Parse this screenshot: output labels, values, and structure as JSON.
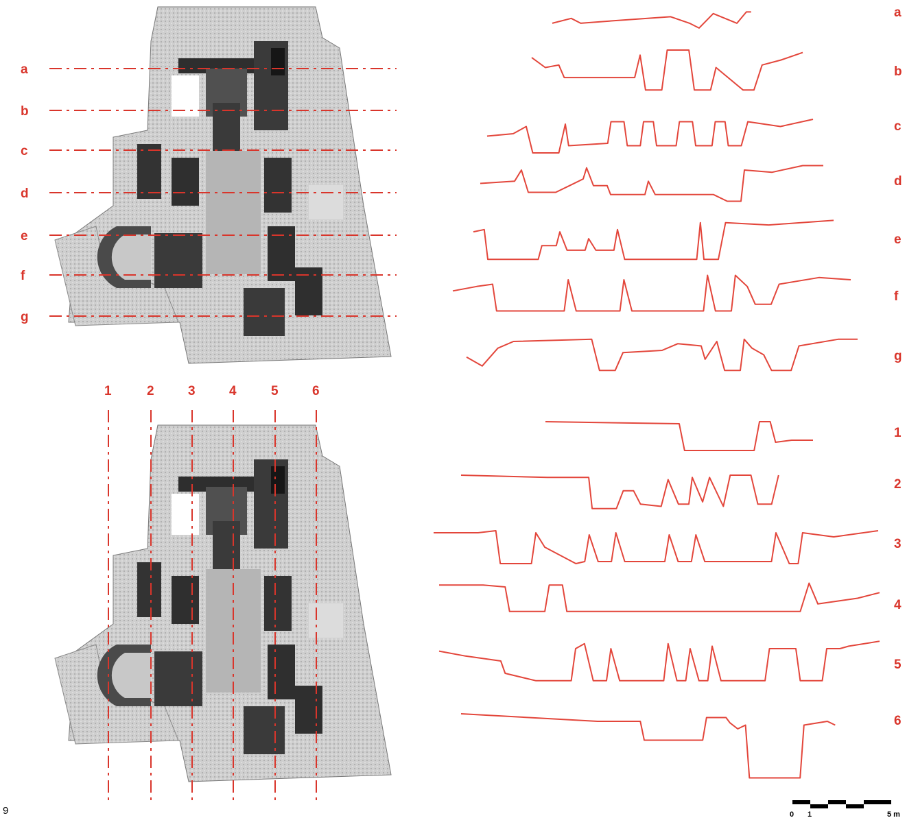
{
  "figure_number": "9",
  "colors": {
    "section_line": "#d9352b",
    "profile": "#e3463b",
    "plan_dark": "#2b2b2b",
    "plan_mid": "#8d8d8d",
    "plan_light": "#d4d4d4"
  },
  "horizontal_sections": [
    {
      "label": "a",
      "profile": [
        [
          0,
          0.55
        ],
        [
          0.08,
          0.4
        ],
        [
          0.12,
          0.55
        ],
        [
          0.3,
          0.45
        ],
        [
          0.5,
          0.35
        ],
        [
          0.58,
          0.55
        ],
        [
          0.62,
          0.7
        ],
        [
          0.68,
          0.25
        ],
        [
          0.78,
          0.55
        ],
        [
          0.82,
          0.2
        ],
        [
          0.84,
          0.2
        ]
      ]
    },
    {
      "label": "b",
      "profile": [
        [
          0,
          0.3
        ],
        [
          0.05,
          0.5
        ],
        [
          0.1,
          0.45
        ],
        [
          0.12,
          0.7
        ],
        [
          0.38,
          0.7
        ],
        [
          0.4,
          0.25
        ],
        [
          0.42,
          0.95
        ],
        [
          0.48,
          0.95
        ],
        [
          0.5,
          0.15
        ],
        [
          0.58,
          0.15
        ],
        [
          0.6,
          0.95
        ],
        [
          0.66,
          0.95
        ],
        [
          0.68,
          0.5
        ],
        [
          0.78,
          0.95
        ],
        [
          0.82,
          0.95
        ],
        [
          0.85,
          0.45
        ],
        [
          0.92,
          0.35
        ],
        [
          1.0,
          0.2
        ]
      ]
    },
    {
      "label": "c",
      "profile": [
        [
          0,
          0.55
        ],
        [
          0.08,
          0.5
        ],
        [
          0.12,
          0.35
        ],
        [
          0.14,
          0.9
        ],
        [
          0.22,
          0.9
        ],
        [
          0.24,
          0.3
        ],
        [
          0.25,
          0.75
        ],
        [
          0.37,
          0.7
        ],
        [
          0.38,
          0.25
        ],
        [
          0.42,
          0.25
        ],
        [
          0.43,
          0.75
        ],
        [
          0.47,
          0.75
        ],
        [
          0.48,
          0.25
        ],
        [
          0.51,
          0.25
        ],
        [
          0.52,
          0.75
        ],
        [
          0.58,
          0.75
        ],
        [
          0.59,
          0.25
        ],
        [
          0.63,
          0.25
        ],
        [
          0.64,
          0.75
        ],
        [
          0.69,
          0.75
        ],
        [
          0.7,
          0.25
        ],
        [
          0.73,
          0.25
        ],
        [
          0.74,
          0.75
        ],
        [
          0.78,
          0.75
        ],
        [
          0.8,
          0.25
        ],
        [
          0.9,
          0.35
        ],
        [
          1.0,
          0.2
        ]
      ]
    },
    {
      "label": "d",
      "profile": [
        [
          0,
          0.5
        ],
        [
          0.1,
          0.45
        ],
        [
          0.12,
          0.2
        ],
        [
          0.14,
          0.7
        ],
        [
          0.22,
          0.7
        ],
        [
          0.26,
          0.55
        ],
        [
          0.3,
          0.4
        ],
        [
          0.31,
          0.15
        ],
        [
          0.33,
          0.55
        ],
        [
          0.37,
          0.55
        ],
        [
          0.38,
          0.75
        ],
        [
          0.48,
          0.75
        ],
        [
          0.49,
          0.45
        ],
        [
          0.51,
          0.75
        ],
        [
          0.68,
          0.75
        ],
        [
          0.72,
          0.9
        ],
        [
          0.76,
          0.9
        ],
        [
          0.77,
          0.2
        ],
        [
          0.85,
          0.25
        ],
        [
          0.94,
          0.1
        ],
        [
          1.0,
          0.1
        ]
      ]
    },
    {
      "label": "e",
      "profile": [
        [
          0,
          0.3
        ],
        [
          0.03,
          0.25
        ],
        [
          0.04,
          0.9
        ],
        [
          0.18,
          0.9
        ],
        [
          0.19,
          0.6
        ],
        [
          0.23,
          0.6
        ],
        [
          0.24,
          0.3
        ],
        [
          0.26,
          0.7
        ],
        [
          0.31,
          0.7
        ],
        [
          0.32,
          0.45
        ],
        [
          0.34,
          0.7
        ],
        [
          0.39,
          0.7
        ],
        [
          0.4,
          0.25
        ],
        [
          0.42,
          0.9
        ],
        [
          0.62,
          0.9
        ],
        [
          0.63,
          0.1
        ],
        [
          0.64,
          0.9
        ],
        [
          0.68,
          0.9
        ],
        [
          0.7,
          0.1
        ],
        [
          0.82,
          0.15
        ],
        [
          1.0,
          0.05
        ]
      ]
    },
    {
      "label": "f",
      "profile": [
        [
          0,
          0.45
        ],
        [
          0.06,
          0.35
        ],
        [
          0.1,
          0.3
        ],
        [
          0.11,
          0.9
        ],
        [
          0.28,
          0.9
        ],
        [
          0.29,
          0.2
        ],
        [
          0.31,
          0.9
        ],
        [
          0.42,
          0.9
        ],
        [
          0.43,
          0.2
        ],
        [
          0.45,
          0.9
        ],
        [
          0.63,
          0.9
        ],
        [
          0.64,
          0.1
        ],
        [
          0.66,
          0.9
        ],
        [
          0.7,
          0.9
        ],
        [
          0.71,
          0.1
        ],
        [
          0.74,
          0.35
        ],
        [
          0.76,
          0.75
        ],
        [
          0.8,
          0.75
        ],
        [
          0.82,
          0.3
        ],
        [
          0.92,
          0.15
        ],
        [
          1.0,
          0.2
        ]
      ]
    },
    {
      "label": "g",
      "profile": [
        [
          0,
          0.55
        ],
        [
          0.04,
          0.75
        ],
        [
          0.08,
          0.35
        ],
        [
          0.12,
          0.2
        ],
        [
          0.32,
          0.15
        ],
        [
          0.34,
          0.85
        ],
        [
          0.38,
          0.85
        ],
        [
          0.4,
          0.45
        ],
        [
          0.5,
          0.4
        ],
        [
          0.54,
          0.25
        ],
        [
          0.6,
          0.3
        ],
        [
          0.61,
          0.6
        ],
        [
          0.64,
          0.2
        ],
        [
          0.66,
          0.85
        ],
        [
          0.7,
          0.85
        ],
        [
          0.71,
          0.15
        ],
        [
          0.73,
          0.35
        ],
        [
          0.76,
          0.5
        ],
        [
          0.78,
          0.85
        ],
        [
          0.83,
          0.85
        ],
        [
          0.85,
          0.3
        ],
        [
          0.95,
          0.15
        ],
        [
          1.0,
          0.15
        ]
      ]
    }
  ],
  "vertical_sections": [
    {
      "label": "1",
      "profile": [
        [
          0,
          0.25
        ],
        [
          0.5,
          0.3
        ],
        [
          0.52,
          0.95
        ],
        [
          0.78,
          0.95
        ],
        [
          0.8,
          0.25
        ],
        [
          0.84,
          0.25
        ],
        [
          0.86,
          0.75
        ],
        [
          0.92,
          0.7
        ],
        [
          1.0,
          0.7
        ]
      ]
    },
    {
      "label": "2",
      "profile": [
        [
          0,
          0.2
        ],
        [
          0.25,
          0.25
        ],
        [
          0.37,
          0.25
        ],
        [
          0.38,
          0.95
        ],
        [
          0.45,
          0.95
        ],
        [
          0.47,
          0.55
        ],
        [
          0.5,
          0.55
        ],
        [
          0.52,
          0.85
        ],
        [
          0.58,
          0.9
        ],
        [
          0.6,
          0.3
        ],
        [
          0.63,
          0.85
        ],
        [
          0.66,
          0.85
        ],
        [
          0.67,
          0.25
        ],
        [
          0.7,
          0.8
        ],
        [
          0.72,
          0.25
        ],
        [
          0.76,
          0.9
        ],
        [
          0.78,
          0.2
        ],
        [
          0.84,
          0.2
        ],
        [
          0.86,
          0.85
        ],
        [
          0.9,
          0.85
        ],
        [
          0.92,
          0.2
        ]
      ]
    },
    {
      "label": "3",
      "profile": [
        [
          0,
          0.15
        ],
        [
          0.1,
          0.15
        ],
        [
          0.14,
          0.1
        ],
        [
          0.15,
          0.9
        ],
        [
          0.22,
          0.9
        ],
        [
          0.23,
          0.15
        ],
        [
          0.25,
          0.5
        ],
        [
          0.32,
          0.9
        ],
        [
          0.34,
          0.85
        ],
        [
          0.35,
          0.2
        ],
        [
          0.37,
          0.85
        ],
        [
          0.4,
          0.85
        ],
        [
          0.41,
          0.15
        ],
        [
          0.43,
          0.85
        ],
        [
          0.52,
          0.85
        ],
        [
          0.53,
          0.2
        ],
        [
          0.55,
          0.85
        ],
        [
          0.58,
          0.85
        ],
        [
          0.59,
          0.2
        ],
        [
          0.61,
          0.85
        ],
        [
          0.76,
          0.85
        ],
        [
          0.77,
          0.15
        ],
        [
          0.8,
          0.9
        ],
        [
          0.82,
          0.9
        ],
        [
          0.83,
          0.15
        ],
        [
          0.9,
          0.25
        ],
        [
          1.0,
          0.1
        ]
      ]
    },
    {
      "label": "4",
      "profile": [
        [
          0,
          0.15
        ],
        [
          0.1,
          0.15
        ],
        [
          0.15,
          0.2
        ],
        [
          0.16,
          0.85
        ],
        [
          0.24,
          0.85
        ],
        [
          0.25,
          0.15
        ],
        [
          0.28,
          0.15
        ],
        [
          0.29,
          0.85
        ],
        [
          0.82,
          0.85
        ],
        [
          0.84,
          0.1
        ],
        [
          0.86,
          0.65
        ],
        [
          0.95,
          0.5
        ],
        [
          1.0,
          0.35
        ]
      ]
    },
    {
      "label": "5",
      "profile": [
        [
          0,
          0.3
        ],
        [
          0.06,
          0.4
        ],
        [
          0.14,
          0.5
        ],
        [
          0.15,
          0.75
        ],
        [
          0.22,
          0.9
        ],
        [
          0.3,
          0.9
        ],
        [
          0.31,
          0.25
        ],
        [
          0.33,
          0.15
        ],
        [
          0.35,
          0.9
        ],
        [
          0.38,
          0.9
        ],
        [
          0.39,
          0.25
        ],
        [
          0.41,
          0.9
        ],
        [
          0.51,
          0.9
        ],
        [
          0.52,
          0.15
        ],
        [
          0.54,
          0.9
        ],
        [
          0.56,
          0.9
        ],
        [
          0.57,
          0.25
        ],
        [
          0.59,
          0.9
        ],
        [
          0.61,
          0.9
        ],
        [
          0.62,
          0.2
        ],
        [
          0.64,
          0.9
        ],
        [
          0.74,
          0.9
        ],
        [
          0.75,
          0.25
        ],
        [
          0.81,
          0.25
        ],
        [
          0.82,
          0.9
        ],
        [
          0.87,
          0.9
        ],
        [
          0.88,
          0.25
        ],
        [
          0.91,
          0.25
        ],
        [
          0.93,
          0.2
        ],
        [
          1.0,
          0.1
        ]
      ]
    },
    {
      "label": "6",
      "profile": [
        [
          0,
          0.1
        ],
        [
          0.35,
          0.2
        ],
        [
          0.46,
          0.2
        ],
        [
          0.47,
          0.45
        ],
        [
          0.62,
          0.45
        ],
        [
          0.63,
          0.15
        ],
        [
          0.68,
          0.15
        ],
        [
          0.69,
          0.22
        ],
        [
          0.71,
          0.3
        ],
        [
          0.73,
          0.25
        ],
        [
          0.74,
          0.95
        ],
        [
          0.87,
          0.95
        ],
        [
          0.88,
          0.25
        ],
        [
          0.94,
          0.2
        ],
        [
          0.96,
          0.25
        ]
      ]
    }
  ],
  "scale_bar": {
    "labels": [
      "0",
      "1",
      "5 m"
    ]
  }
}
